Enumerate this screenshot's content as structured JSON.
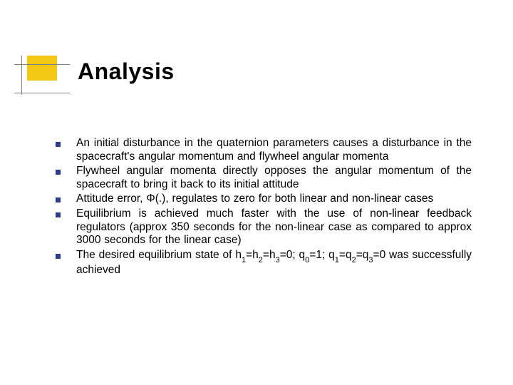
{
  "colors": {
    "accent_yellow": "#f2c814",
    "bullet_color": "#2f3a8f",
    "line_color": "#808080",
    "text_color": "#000000",
    "background": "#ffffff"
  },
  "typography": {
    "title_fontsize": 32,
    "title_weight": "bold",
    "body_fontsize": 15.5,
    "font_family": "Verdana"
  },
  "title": "Analysis",
  "bullets": [
    "An initial disturbance in the quaternion parameters causes a disturbance in the spacecraft's angular momentum and flywheel angular momenta",
    "Flywheel angular momenta directly opposes the angular momentum of the spacecraft to bring it back to its initial attitude",
    "Attitude error, Φ(.), regulates to zero for both linear and non-linear cases",
    "Equilibrium is achieved much faster with the use of non-linear feedback regulators (approx 350 seconds for the non-linear case as compared to approx 3000 seconds for the linear case)",
    "The desired equilibrium state of h₁=h₂=h₃=0; q₀=1; q₁=q₂=q₃=0 was successfully achieved"
  ],
  "bullets_html": [
    "An initial disturbance in the quaternion parameters causes a disturbance in the spacecraft's angular momentum and flywheel angular momenta",
    "Flywheel angular momenta directly opposes the angular momentum of the spacecraft to bring it back to its initial attitude",
    "Attitude error, Φ(.), regulates to zero for both linear and non-linear cases",
    "Equilibrium is achieved much faster with the use of non-linear feedback regulators (approx 350 seconds for the non-linear case as compared to approx 3000 seconds for the linear case)",
    "The desired equilibrium state of h<span class='sub'>1</span>=h<span class='sub'>2</span>=h<span class='sub'>3</span>=0; q<span class='sub'>0</span>=1; q<span class='sub'>1</span>=q<span class='sub'>2</span>=q<span class='sub'>3</span>=0 was successfully achieved"
  ]
}
